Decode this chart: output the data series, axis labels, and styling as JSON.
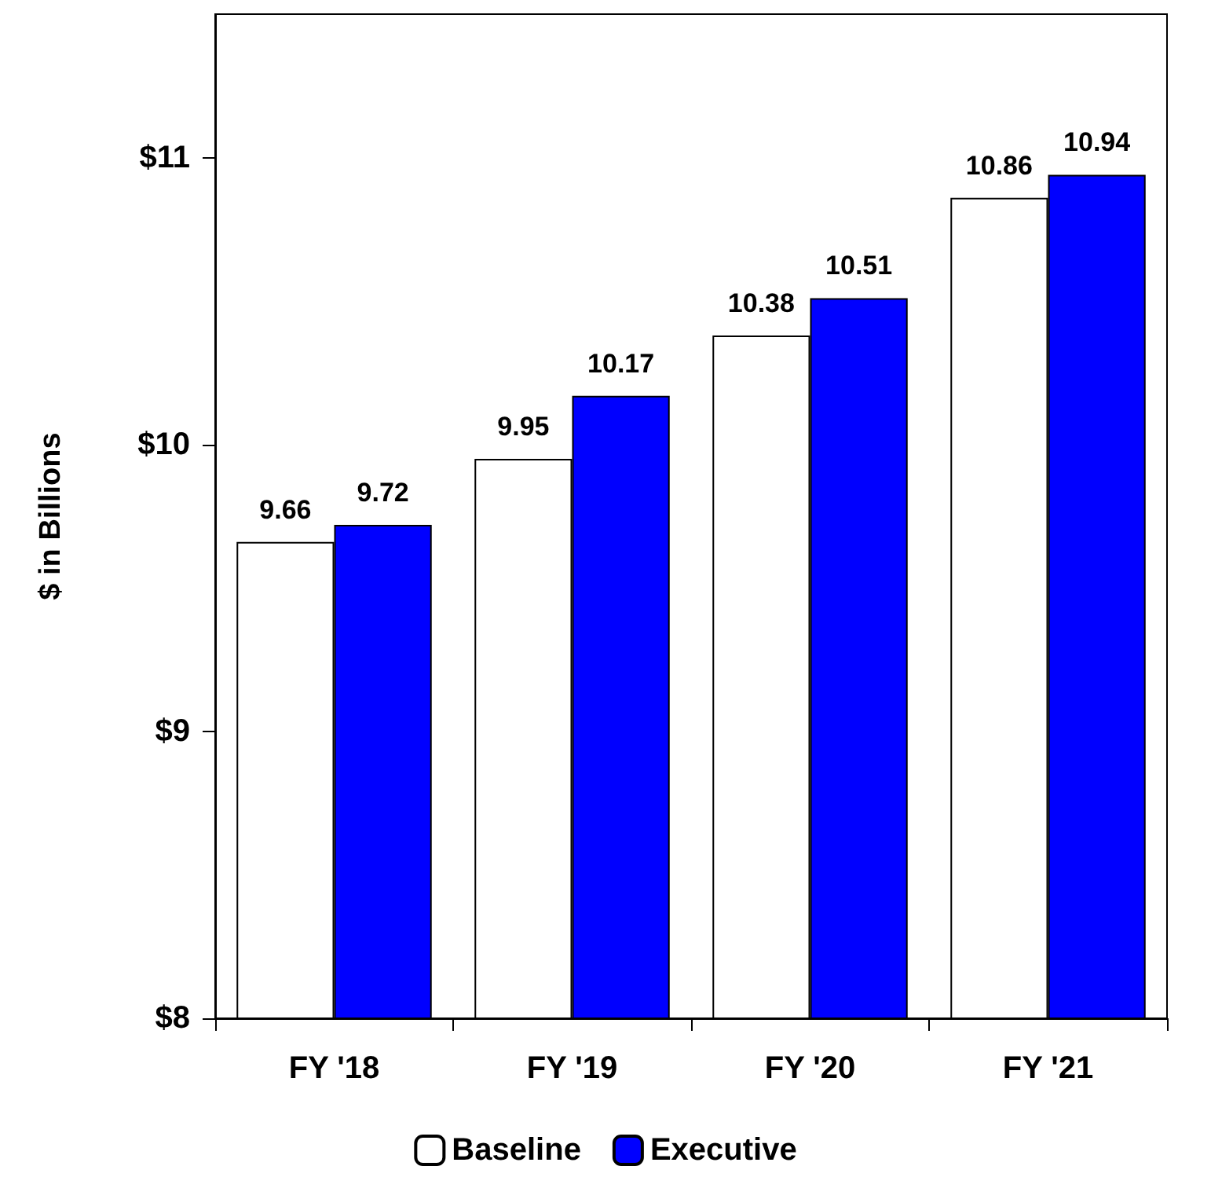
{
  "chart_data": {
    "type": "bar",
    "ylabel": "$ in Billions",
    "categories": [
      "FY '18",
      "FY '19",
      "FY '20",
      "FY '21"
    ],
    "series": [
      {
        "name": "Baseline",
        "color": "#ffffff",
        "values": [
          9.66,
          9.95,
          10.38,
          10.86
        ]
      },
      {
        "name": "Executive",
        "color": "#0000ff",
        "values": [
          9.72,
          10.17,
          10.51,
          10.94
        ]
      }
    ],
    "ylim": [
      8,
      11.5
    ],
    "yticks": [
      {
        "value": 8,
        "label": "$8"
      },
      {
        "value": 9,
        "label": "$9"
      },
      {
        "value": 10,
        "label": "$10"
      },
      {
        "value": 11,
        "label": "$11"
      }
    ],
    "grid": false,
    "legend": "bottom",
    "data_labels": true
  }
}
